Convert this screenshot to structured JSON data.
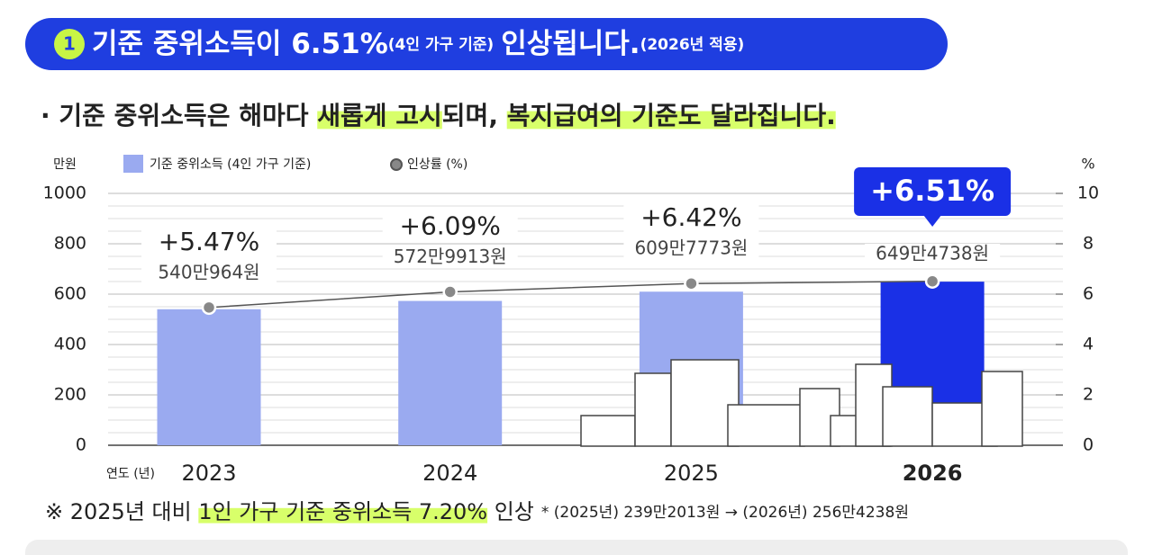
{
  "chart_data": {
    "type": "bar-line",
    "banner": {
      "number": "1",
      "main": "기준 중위소득이 6.51%",
      "note": "(4인 가구 기준)",
      "tail": "인상됩니다.",
      "note2": "(2026년 적용)"
    },
    "subtitle_parts": [
      {
        "text": "· 기준 중위소득은 해마다 ",
        "highlight": false
      },
      {
        "text": "새롭게 고시",
        "highlight": true
      },
      {
        "text": "되며, ",
        "highlight": false
      },
      {
        "text": "복지급여의 기준도 달라집니다.",
        "highlight": true
      }
    ],
    "y_label": "만원",
    "y2_label": "%",
    "x_label": "연도 (년)",
    "categories": [
      "2023",
      "2024",
      "2025",
      "2026"
    ],
    "highlight_index": 3,
    "series": [
      {
        "name": "기준 중위소득 (4인 가구 기준)",
        "colors": [
          "#9aaaf0",
          "#9aaaf0",
          "#9aaaf0",
          "#1a30e6"
        ],
        "values": [
          540.0964,
          572.9913,
          609.7773,
          649.4738
        ],
        "value_labels": [
          "540만964원",
          "572만9913원",
          "609만7773원",
          "649만4738원"
        ]
      },
      {
        "name": "인상률 (%)",
        "color": "#555555",
        "axis": "y2",
        "values": [
          5.47,
          6.09,
          6.42,
          6.51
        ],
        "value_labels": [
          "+5.47%",
          "+6.09%",
          "+6.42%",
          "+6.51%"
        ]
      }
    ],
    "ylim": [
      0,
      1000
    ],
    "yticks": [
      0,
      200,
      400,
      600,
      800,
      1000
    ],
    "y2lim": [
      0,
      10
    ],
    "y2ticks": [
      0,
      2,
      4,
      6,
      8,
      10
    ],
    "grid": true,
    "footnote": {
      "lead": "※ 2025년 대비 ",
      "highlight": "1인 가구 기준 중위소득 7.20%",
      "tail": " 인상",
      "detail": "* (2025년) 239만2013원 → (2026년) 256만4238원"
    }
  }
}
